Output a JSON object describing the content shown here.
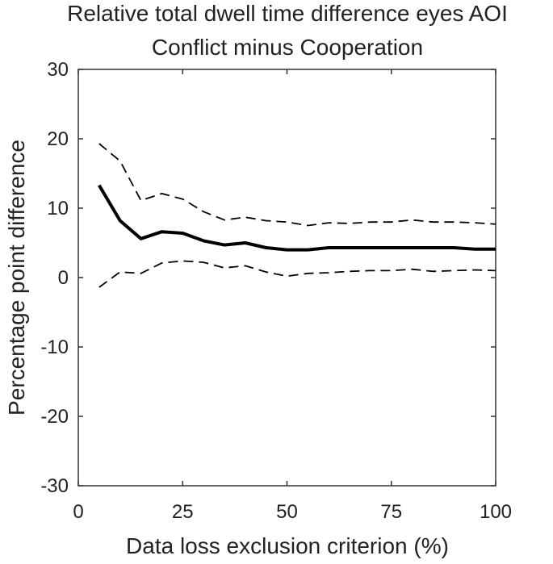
{
  "chart_data": {
    "type": "line",
    "title": "Relative total dwell time difference eyes AOI",
    "subtitle": "Conflict minus Cooperation",
    "xlabel": "Data loss exclusion criterion (%)",
    "ylabel": "Percentage point difference",
    "xlim": [
      0,
      100
    ],
    "ylim": [
      -30,
      30
    ],
    "xticks": [
      0,
      25,
      50,
      75,
      100
    ],
    "yticks": [
      -30,
      -20,
      -10,
      0,
      10,
      20,
      30
    ],
    "grid": false,
    "legend": "none",
    "x": [
      5,
      10,
      15,
      20,
      25,
      30,
      35,
      40,
      45,
      50,
      55,
      60,
      65,
      70,
      75,
      80,
      85,
      90,
      95,
      100
    ],
    "series": [
      {
        "role": "estimate",
        "style": "solid",
        "color": "#000000",
        "values": [
          13.3,
          8.2,
          5.6,
          6.6,
          6.4,
          5.3,
          4.7,
          5.0,
          4.3,
          4.0,
          4.0,
          4.3,
          4.3,
          4.3,
          4.3,
          4.3,
          4.3,
          4.3,
          4.1,
          4.1
        ]
      },
      {
        "role": "upper-bound",
        "style": "dashed",
        "color": "#000000",
        "values": [
          19.3,
          16.8,
          11.1,
          12.1,
          11.3,
          9.5,
          8.3,
          8.7,
          8.2,
          8.0,
          7.5,
          7.9,
          7.8,
          8.0,
          8.0,
          8.3,
          8.0,
          8.0,
          7.9,
          7.7
        ]
      },
      {
        "role": "lower-bound",
        "style": "dashed",
        "color": "#000000",
        "values": [
          -1.4,
          0.8,
          0.6,
          2.1,
          2.4,
          2.2,
          1.4,
          1.7,
          0.8,
          0.2,
          0.6,
          0.7,
          0.9,
          1.0,
          1.0,
          1.2,
          0.9,
          1.0,
          1.1,
          1.0
        ]
      }
    ]
  }
}
